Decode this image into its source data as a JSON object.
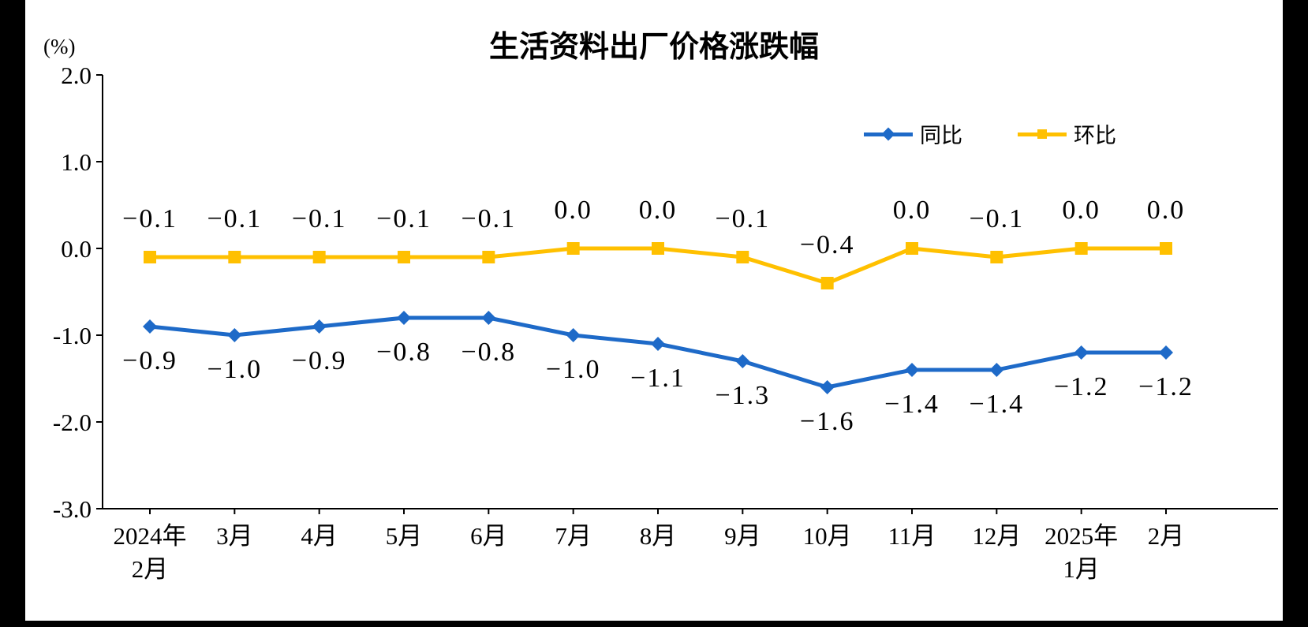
{
  "chart_data": {
    "type": "line",
    "title": "生活资料出厂价格涨跌幅",
    "y_axis_unit": "(%)",
    "ylim": [
      -3.0,
      2.0
    ],
    "grid": false,
    "legend_position": "top-right",
    "yticks": [
      {
        "value": 2.0,
        "label": "2.0"
      },
      {
        "value": 1.0,
        "label": "1.0"
      },
      {
        "value": 0.0,
        "label": "0.0"
      },
      {
        "value": -1.0,
        "label": "-1.0"
      },
      {
        "value": -2.0,
        "label": "-2.0"
      },
      {
        "value": -3.0,
        "label": "-3.0"
      }
    ],
    "categories": [
      "2024年\n2月",
      "3月",
      "4月",
      "5月",
      "6月",
      "7月",
      "8月",
      "9月",
      "10月",
      "11月",
      "12月",
      "2025年\n1月",
      "2月"
    ],
    "series": [
      {
        "name": "同比",
        "color": "#1E6AC8",
        "marker": "diamond",
        "values": [
          -0.9,
          -1.0,
          -0.9,
          -0.8,
          -0.8,
          -1.0,
          -1.1,
          -1.3,
          -1.6,
          -1.4,
          -1.4,
          -1.2,
          -1.2
        ],
        "labels": [
          "−0.9",
          "−1.0",
          "−0.9",
          "−0.8",
          "−0.8",
          "−1.0",
          "−1.1",
          "−1.3",
          "−1.6",
          "−1.4",
          "−1.4",
          "−1.2",
          "−1.2"
        ]
      },
      {
        "name": "环比",
        "color": "#FFC000",
        "marker": "square",
        "values": [
          -0.1,
          -0.1,
          -0.1,
          -0.1,
          -0.1,
          0.0,
          0.0,
          -0.1,
          -0.4,
          0.0,
          -0.1,
          0.0,
          0.0
        ],
        "labels": [
          "−0.1",
          "−0.1",
          "−0.1",
          "−0.1",
          "−0.1",
          "0.0",
          "0.0",
          "−0.1",
          "−0.4",
          "0.0",
          "−0.1",
          "0.0",
          "0.0"
        ]
      }
    ]
  }
}
